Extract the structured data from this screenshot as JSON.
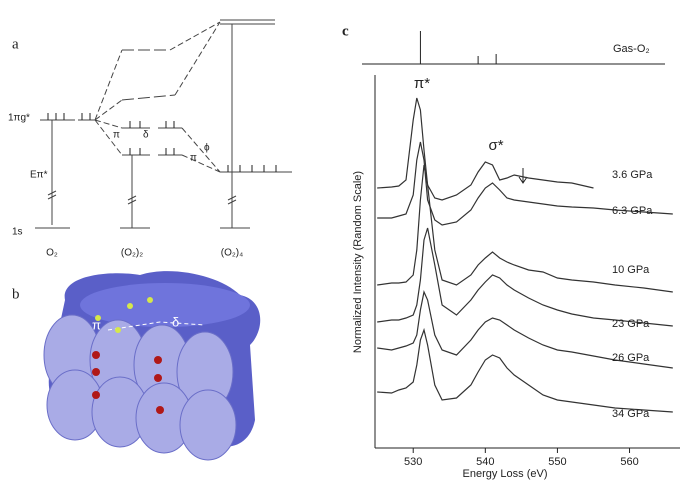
{
  "panel_a": {
    "label": "a",
    "level_upper": "1πg*",
    "energy": "Eπ*",
    "level_core": "1s",
    "species": [
      "O₂",
      "(O₂)₂",
      "(O₂)₄"
    ],
    "bond_labels": [
      "π",
      "δ",
      "π",
      "ϕ"
    ]
  },
  "panel_b": {
    "label": "b",
    "bond_labels": [
      "π",
      "δ"
    ]
  },
  "chart_data": {
    "type": "line",
    "panel_label": "c",
    "xlabel": "Energy Loss (eV)",
    "ylabel": "Normalized Intensity (Random Scale)",
    "annotations": [
      "π*",
      "σ*"
    ],
    "xlim": [
      524.7,
      567
    ],
    "xticks": [
      530,
      540,
      550,
      560
    ],
    "ylim": [
      0,
      373
    ],
    "reference": {
      "name": "Gas-O₂",
      "x": [
        531,
        539,
        541.5
      ],
      "heights": [
        33,
        8,
        10
      ]
    },
    "x": [
      525,
      527,
      528,
      529,
      530,
      530.5,
      531,
      531.5,
      532,
      533,
      534,
      536,
      538,
      539,
      540,
      541,
      542,
      543,
      544,
      546,
      548,
      550,
      552,
      555,
      558,
      562,
      566
    ],
    "series": [
      {
        "name": "3.6 GPa",
        "color": "#333333",
        "values": [
          260,
          261,
          262,
          268,
          328,
          350,
          338,
          298,
          263,
          250,
          248,
          253,
          263,
          276,
          286,
          283,
          268,
          270,
          273,
          270,
          268,
          266,
          265,
          260,
          null,
          null,
          null
        ]
      },
      {
        "name": "6.3 GPa",
        "color": "#333333",
        "values": [
          230,
          230,
          232,
          234,
          253,
          288,
          306,
          288,
          248,
          228,
          223,
          226,
          238,
          250,
          260,
          265,
          258,
          250,
          248,
          246,
          244,
          242,
          241,
          240,
          238,
          236,
          234
        ]
      },
      {
        "name": "10 GPa",
        "color": "#333333",
        "values": [
          163,
          165,
          165,
          166,
          173,
          198,
          248,
          283,
          263,
          198,
          168,
          163,
          173,
          183,
          190,
          196,
          190,
          186,
          183,
          178,
          176,
          170,
          168,
          166,
          163,
          160,
          156
        ]
      },
      {
        "name": "23 GPa",
        "color": "#333333",
        "values": [
          126,
          128,
          128,
          130,
          133,
          143,
          168,
          208,
          220,
          183,
          143,
          133,
          148,
          158,
          166,
          173,
          170,
          163,
          158,
          150,
          143,
          138,
          134,
          130,
          128,
          125,
          122
        ]
      },
      {
        "name": "26 GPa",
        "color": "#333333",
        "values": [
          100,
          98,
          100,
          102,
          105,
          113,
          138,
          156,
          148,
          113,
          98,
          93,
          108,
          118,
          126,
          130,
          128,
          123,
          118,
          110,
          103,
          98,
          96,
          92,
          88,
          84,
          80
        ]
      },
      {
        "name": "34 GPa",
        "color": "#333333",
        "values": [
          56,
          55,
          58,
          60,
          66,
          83,
          108,
          118,
          103,
          63,
          48,
          50,
          63,
          76,
          88,
          93,
          90,
          80,
          73,
          63,
          53,
          48,
          46,
          43,
          40,
          38,
          36
        ]
      }
    ]
  }
}
